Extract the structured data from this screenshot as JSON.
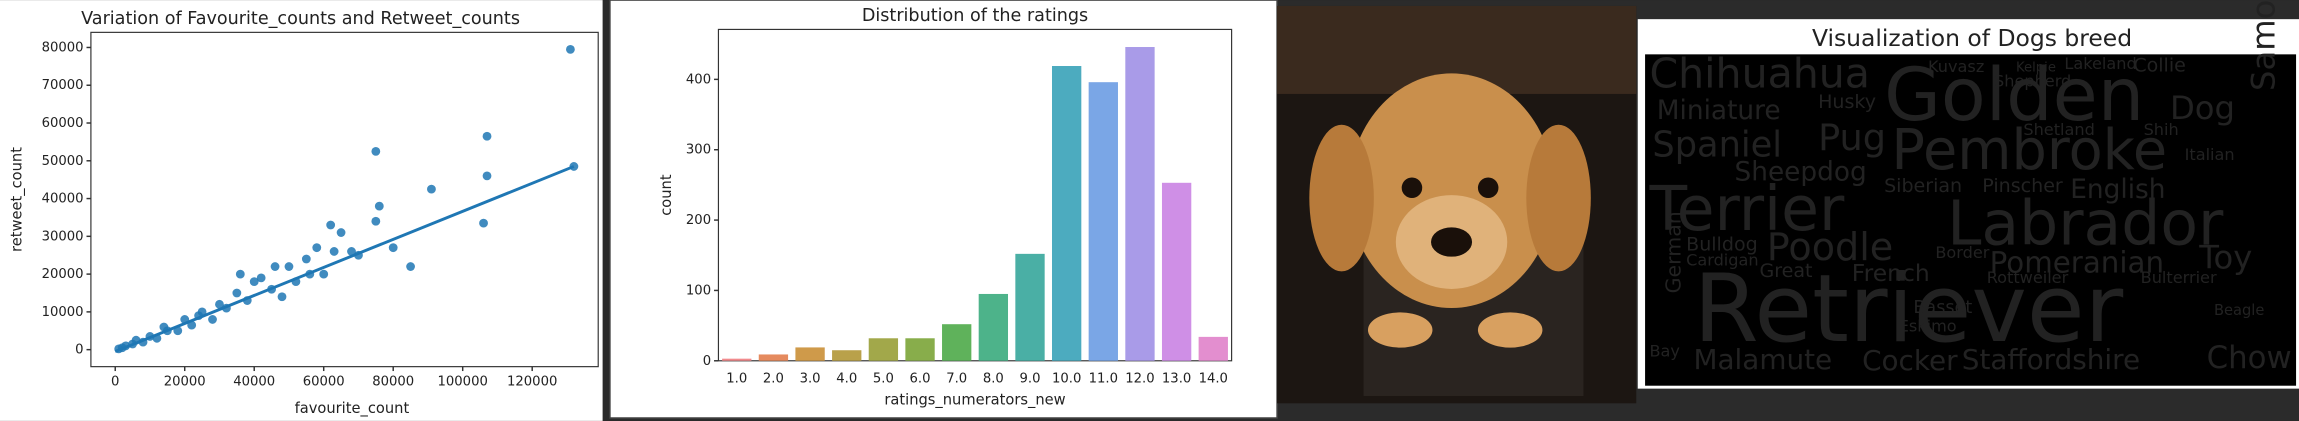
{
  "chart_data": [
    {
      "type": "scatter",
      "title": "Variation of Favourite_counts and Retweet_counts",
      "x_label": "favourite_count",
      "y_label": "retweet_count",
      "color": "#1f77b4",
      "x": [
        1000,
        2000,
        3000,
        5000,
        6000,
        8000,
        10000,
        12000,
        14000,
        15000,
        18000,
        20000,
        22000,
        24000,
        25000,
        28000,
        30000,
        32000,
        35000,
        36000,
        38000,
        40000,
        42000,
        45000,
        46000,
        48000,
        50000,
        52000,
        55000,
        56000,
        58000,
        60000,
        62000,
        63000,
        65000,
        68000,
        70000,
        75000,
        75000,
        76000,
        80000,
        85000,
        91000,
        106000,
        107000,
        107000,
        131000,
        132000
      ],
      "y": [
        200,
        500,
        1000,
        1500,
        2500,
        2000,
        3500,
        3000,
        6000,
        5000,
        5000,
        8000,
        6500,
        9000,
        10000,
        8000,
        12000,
        11000,
        15000,
        20000,
        13000,
        18000,
        19000,
        16000,
        22000,
        14000,
        22000,
        18000,
        24000,
        20000,
        27000,
        20000,
        33000,
        26000,
        31000,
        26000,
        25000,
        52500,
        34000,
        38000,
        27000,
        22000,
        42500,
        33500,
        56500,
        46000,
        79500,
        48500
      ],
      "fit_line": {
        "x": [
          0,
          132000
        ],
        "y": [
          -500,
          48500
        ]
      },
      "xlim": [
        -7000,
        139000
      ],
      "ylim": [
        -4500,
        84000
      ],
      "xticks": [
        0,
        20000,
        40000,
        60000,
        80000,
        100000,
        120000
      ],
      "yticks": [
        0,
        10000,
        20000,
        30000,
        40000,
        50000,
        60000,
        70000,
        80000
      ]
    },
    {
      "type": "bar",
      "title": "Distribution of the ratings",
      "x_label": "ratings_numerators_new",
      "y_label": "count",
      "categories": [
        "1.0",
        "2.0",
        "3.0",
        "4.0",
        "5.0",
        "6.0",
        "7.0",
        "8.0",
        "9.0",
        "10.0",
        "11.0",
        "12.0",
        "13.0",
        "14.0"
      ],
      "values": [
        3,
        9,
        19,
        15,
        32,
        32,
        52,
        95,
        152,
        419,
        396,
        446,
        253,
        34
      ],
      "colors": [
        "#f28b8e",
        "#e58a5e",
        "#cf9a4a",
        "#b9a14a",
        "#a2a84a",
        "#88ad4b",
        "#5fb25b",
        "#4db38a",
        "#4aafa5",
        "#4cabbf",
        "#7aa6e6",
        "#a99be8",
        "#cf8fe6",
        "#e38ecf"
      ],
      "ylim": [
        0,
        471
      ],
      "yticks": [
        0,
        100,
        200,
        300,
        400
      ]
    }
  ],
  "wordcloud": {
    "title": "Visualization of Dogs breed",
    "words": [
      {
        "text": "Chihuahua",
        "color": "#dcdcdc"
      },
      {
        "text": "Golden",
        "color": "#2b7bba"
      },
      {
        "text": "Dog",
        "color": "#e8a33d"
      },
      {
        "text": "Samoyed",
        "color": "#c88a8a"
      },
      {
        "text": "Miniature",
        "color": "#e6e6a0"
      },
      {
        "text": "Spaniel",
        "color": "#d03030"
      },
      {
        "text": "Pug",
        "color": "#d04880"
      },
      {
        "text": "Pembroke",
        "color": "#9b6fd0"
      },
      {
        "text": "Sheepdog",
        "color": "#6fd070"
      },
      {
        "text": "Shetland",
        "color": "#ffffff"
      },
      {
        "text": "Terrier",
        "color": "#e25cb8"
      },
      {
        "text": "Labrador",
        "color": "#c050c8"
      },
      {
        "text": "English",
        "color": "#e0c080"
      },
      {
        "text": "Siberian",
        "color": "#e0a0c0"
      },
      {
        "text": "Pinscher",
        "color": "#e0e0c0"
      },
      {
        "text": "Poodle",
        "color": "#f0c0c0"
      },
      {
        "text": "Pomeranian",
        "color": "#d8e0f0"
      },
      {
        "text": "Toy",
        "color": "#d08ad0"
      },
      {
        "text": "Bulldog",
        "color": "#c0c040"
      },
      {
        "text": "French",
        "color": "#d0d050"
      },
      {
        "text": "Great",
        "color": "#c08040"
      },
      {
        "text": "Retriever",
        "color": "#6e5a4e"
      },
      {
        "text": "Malamute",
        "color": "#e8b080"
      },
      {
        "text": "Cocker",
        "color": "#f0c0a0"
      },
      {
        "text": "Staffordshire",
        "color": "#70d080"
      },
      {
        "text": "Chow",
        "color": "#e06020"
      },
      {
        "text": "Bay",
        "color": "#ffffff"
      },
      {
        "text": "Basset",
        "color": "#e0c0a0"
      },
      {
        "text": "Eskimo",
        "color": "#e07050"
      },
      {
        "text": "Beagle",
        "color": "#ffffff"
      },
      {
        "text": "Collie",
        "color": "#e0e0c0"
      },
      {
        "text": "Lakeland",
        "color": "#e0e0e0"
      },
      {
        "text": "Kuvasz",
        "color": "#c0c0c0"
      },
      {
        "text": "Kelpie",
        "color": "#e05050"
      },
      {
        "text": "Husky",
        "color": "#b06080"
      },
      {
        "text": "Shepherd",
        "color": "#e0e0e0"
      },
      {
        "text": "Italian",
        "color": "#e0e0e0"
      },
      {
        "text": "Rottweiler",
        "color": "#80c0f0"
      },
      {
        "text": "Bulterrier",
        "color": "#e0e0e0"
      },
      {
        "text": "Cardigan",
        "color": "#e0e0e0"
      },
      {
        "text": "Border",
        "color": "#e0e0e0"
      },
      {
        "text": "Shih",
        "color": "#e0e0e0"
      },
      {
        "text": "German",
        "color": "#e06090"
      }
    ]
  }
}
